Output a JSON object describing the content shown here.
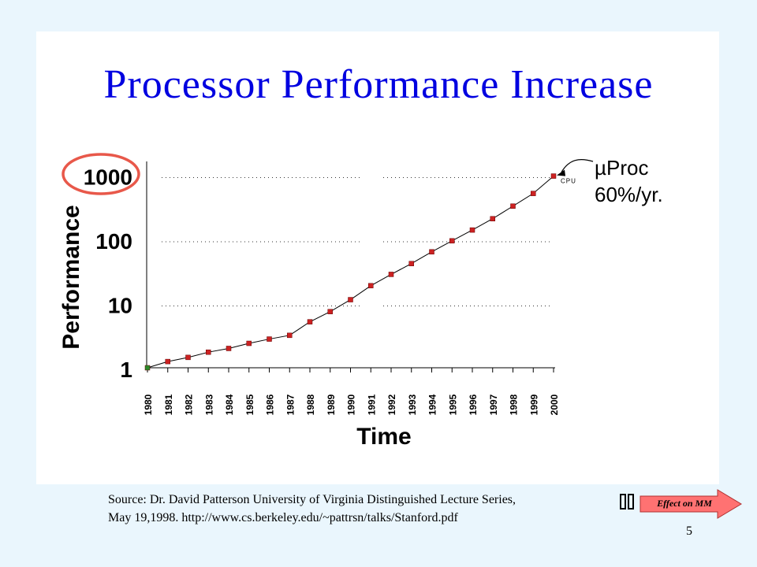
{
  "slide": {
    "title": "Processor Performance Increase",
    "source_line1": "Source: Dr. David Patterson University of Virginia Distinguished Lecture Series,",
    "source_line2": "May 19,1998. http://www.cs.berkeley.edu/~pattrsn/talks/Stanford.pdf",
    "nav_button_glyphs": "🔗",
    "nav_button_label": "Effect on MM",
    "page_number": "5"
  },
  "colors": {
    "title": "#0000e0",
    "marker": "#cc2222",
    "highlight_circle": "#e8584a",
    "nav_arrow_fill": "#ff7272",
    "background": "#eaf6fd"
  },
  "chart_data": {
    "type": "line",
    "xlabel": "Time",
    "ylabel": "Performance",
    "yscale": "log",
    "ylim": [
      1,
      1000
    ],
    "xlim": [
      1980,
      2000
    ],
    "y_ticks": [
      1,
      10,
      100,
      1000
    ],
    "y_tick_labels": [
      "1",
      "10",
      "100",
      "1000"
    ],
    "highlighted_tick": "1000",
    "x": [
      1980,
      1981,
      1982,
      1983,
      1984,
      1985,
      1986,
      1987,
      1988,
      1989,
      1990,
      1991,
      1992,
      1993,
      1994,
      1995,
      1996,
      1997,
      1998,
      1999,
      2000
    ],
    "x_tick_labels": [
      "1980",
      "1981",
      "1982",
      "1983",
      "1984",
      "1985",
      "1986",
      "1987",
      "1988",
      "1989",
      "1990",
      "1991",
      "1992",
      "1993",
      "1994",
      "1995",
      "1996",
      "1997",
      "1998",
      "1999",
      "2000"
    ],
    "series": [
      {
        "name": "CPU",
        "x": [
          1980,
          1981,
          1982,
          1983,
          1984,
          1985,
          1986,
          1987,
          1988,
          1989,
          1990,
          1991,
          1992,
          1993,
          1994,
          1995,
          1996,
          1997,
          1998,
          1999,
          2000
        ],
        "values": [
          1,
          1.25,
          1.45,
          1.75,
          2.0,
          2.4,
          2.8,
          3.2,
          5.2,
          7.5,
          11.5,
          19,
          28.5,
          42,
          64,
          95,
          140,
          210,
          330,
          520,
          970
        ]
      }
    ],
    "annotation": {
      "line1": "µProc",
      "line2": "60%/yr.",
      "points_to": "CPU"
    },
    "grid": "dotted horizontal at 10, 100, 1000"
  }
}
